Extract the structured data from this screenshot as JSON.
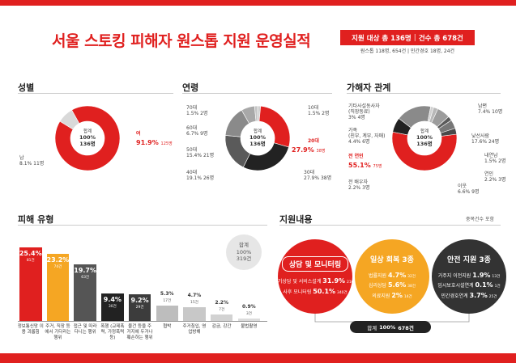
{
  "header": {
    "title": "서울 스토킹 피해자 원스톱 지원 운영실적",
    "summary_label1": "지원 대상",
    "summary_value1": "총 136명",
    "summary_label2": "건수",
    "summary_value2": "총 678건",
    "summary_sub": "원스톱 118명, 654건 | 민간경호 18명, 24건"
  },
  "colors": {
    "red": "#e0201f",
    "black": "#222222",
    "gray": "#8a8a8a",
    "light": "#cfcfcf",
    "yellow": "#f5a623"
  },
  "sections": {
    "gender": "성별",
    "age": "연령",
    "relation": "가해자 관계",
    "damage": "피해 유형",
    "support": "지원내용"
  },
  "chart_data": [
    {
      "type": "pie",
      "title": "성별",
      "center": {
        "line1": "합계",
        "line2": "100%",
        "line3": "136명"
      },
      "slices": [
        {
          "label": "여",
          "value": 91.9,
          "count": "125명"
        },
        {
          "label": "남",
          "value": 8.1,
          "count": "11명"
        }
      ]
    },
    {
      "type": "pie",
      "title": "연령",
      "center": {
        "line1": "합계",
        "line2": "100%",
        "line3": "136명"
      },
      "slices": [
        {
          "label": "10대",
          "value": 1.5,
          "count": "2명"
        },
        {
          "label": "20대",
          "value": 27.9,
          "count": "38명"
        },
        {
          "label": "30대",
          "value": 27.9,
          "count": "38명"
        },
        {
          "label": "40대",
          "value": 19.1,
          "count": "26명"
        },
        {
          "label": "50대",
          "value": 15.4,
          "count": "21명"
        },
        {
          "label": "60대",
          "value": 6.7,
          "count": "9명"
        },
        {
          "label": "70대",
          "value": 1.5,
          "count": "2명"
        }
      ]
    },
    {
      "type": "pie",
      "title": "가해자 관계",
      "center": {
        "line1": "합계",
        "line2": "100%",
        "line3": "136명"
      },
      "slices": [
        {
          "label": "전 연인",
          "value": 55.1,
          "count": "75명"
        },
        {
          "label": "남편",
          "value": 7.4,
          "count": "10명"
        },
        {
          "label": "낯선사람",
          "value": 17.6,
          "count": "24명"
        },
        {
          "label": "내연남",
          "value": 1.5,
          "count": "2명"
        },
        {
          "label": "연인",
          "value": 2.2,
          "count": "3명"
        },
        {
          "label": "이웃",
          "value": 6.6,
          "count": "9명"
        },
        {
          "label": "전 배우자",
          "value": 2.2,
          "count": "3명"
        },
        {
          "label": "가족 (친부, 계부, 자매)",
          "value": 4.4,
          "count": "6명"
        },
        {
          "label": "기타사설동사자 (직장동료)",
          "value": 3.0,
          "count": "4명"
        }
      ]
    },
    {
      "type": "bar",
      "title": "피해 유형",
      "total": {
        "line1": "합계",
        "line2": "100%",
        "line3": "319건"
      },
      "categories": [
        "정보통신망 이용 괴롭힘",
        "주거, 직장 등에서 기다리는 행위",
        "접근 및 따라다니는 행위",
        "폭행 (교제폭력, 가정폭력 등)",
        "물건 등을 주거지에 두거나 훼손하는 행위",
        "협박",
        "주거침입, 영업방해",
        "감금, 강간",
        "불법촬영"
      ],
      "values": [
        25.4,
        23.2,
        19.7,
        9.4,
        9.2,
        5.3,
        4.7,
        2.2,
        0.9
      ],
      "counts": [
        "81건",
        "74건",
        "63건",
        "30건",
        "29건",
        "17건",
        "15건",
        "7건",
        "3건"
      ],
      "ylim": [
        0,
        30
      ]
    }
  ],
  "support": {
    "note": "중복건수 포함",
    "circles": [
      {
        "title": "상담 및 모니터링",
        "rows": [
          {
            "label": "초기상담 및 서비스설계",
            "value": "31.9%",
            "count": "216건"
          },
          {
            "label": "사후 모니터링",
            "value": "50.1%",
            "count": "340건"
          }
        ]
      },
      {
        "title": "일상 회복 3종",
        "rows": [
          {
            "label": "법률지원",
            "value": "4.7%",
            "count": "32건"
          },
          {
            "label": "심리상담",
            "value": "5.6%",
            "count": "38건"
          },
          {
            "label": "의료지원",
            "value": "2%",
            "count": "14건"
          }
        ]
      },
      {
        "title": "안전 지원 3종",
        "rows": [
          {
            "label": "거주지 이전지원",
            "value": "1.9%",
            "count": "13건"
          },
          {
            "label": "임시보호시설연계",
            "value": "0.1%",
            "count": "1건"
          },
          {
            "label": "민간경호연계",
            "value": "3.7%",
            "count": "25건"
          }
        ]
      }
    ],
    "total_label": "합계",
    "total_value": "100%",
    "total_count": "678건"
  }
}
